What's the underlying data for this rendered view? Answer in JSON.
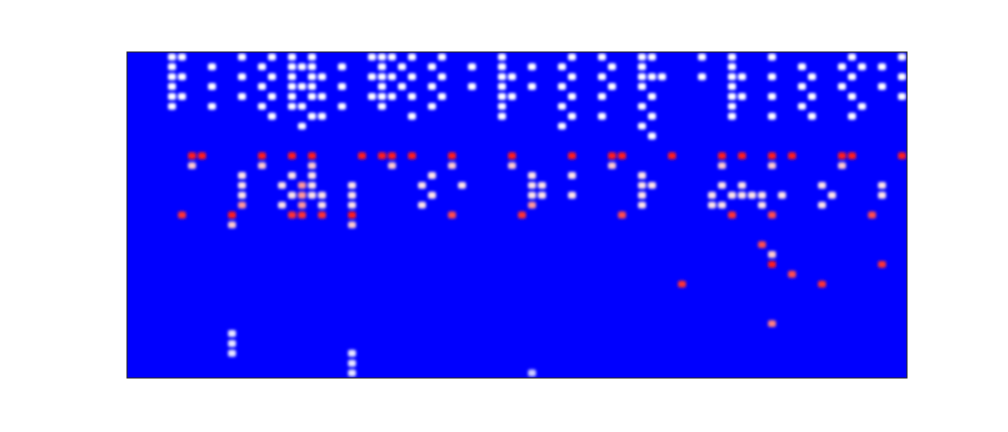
{
  "chart_data": {
    "type": "heatmap",
    "tick_labels": false,
    "grid": false,
    "xlim": [
      0,
      78
    ],
    "ylim": [
      0,
      33
    ],
    "color_range": [
      0,
      1
    ],
    "cells": [
      [
        4,
        32,
        0.5
      ],
      [
        4,
        31,
        0.5
      ],
      [
        4,
        30,
        0.5
      ],
      [
        4,
        29,
        0.5
      ],
      [
        4,
        28,
        0.5
      ],
      [
        4,
        27,
        0.5
      ],
      [
        5,
        32,
        0.5
      ],
      [
        5,
        30,
        0.5
      ],
      [
        5,
        28,
        0.5
      ],
      [
        8,
        31,
        0.5
      ],
      [
        8,
        29,
        0.5
      ],
      [
        8,
        27,
        0.5
      ],
      [
        11,
        32,
        0.5
      ],
      [
        11,
        30,
        0.5
      ],
      [
        11,
        28,
        0.5
      ],
      [
        13,
        31,
        0.5
      ],
      [
        13,
        29,
        0.5
      ],
      [
        13,
        27,
        0.5
      ],
      [
        14,
        32,
        0.5
      ],
      [
        14,
        30,
        0.5
      ],
      [
        14,
        28,
        0.5
      ],
      [
        14,
        26,
        0.5
      ],
      [
        16,
        32,
        0.5
      ],
      [
        16,
        31,
        0.5
      ],
      [
        16,
        30,
        0.5
      ],
      [
        16,
        29,
        0.5
      ],
      [
        16,
        28,
        0.5
      ],
      [
        16,
        27,
        0.5
      ],
      [
        17,
        31,
        0.5
      ],
      [
        17,
        29,
        0.5
      ],
      [
        17,
        27,
        0.5
      ],
      [
        17,
        25,
        0.5
      ],
      [
        18,
        32,
        0.5
      ],
      [
        18,
        31,
        0.5
      ],
      [
        18,
        30,
        0.5
      ],
      [
        18,
        29,
        0.5
      ],
      [
        18,
        28,
        0.5
      ],
      [
        18,
        26,
        0.5
      ],
      [
        19,
        30,
        0.5
      ],
      [
        19,
        28,
        0.5
      ],
      [
        19,
        26,
        0.5
      ],
      [
        21,
        31,
        0.5
      ],
      [
        21,
        29,
        0.5
      ],
      [
        21,
        27,
        0.5
      ],
      [
        24,
        32,
        0.5
      ],
      [
        24,
        30,
        0.5
      ],
      [
        24,
        28,
        0.5
      ],
      [
        25,
        32,
        0.5
      ],
      [
        25,
        31,
        0.5
      ],
      [
        25,
        30,
        0.5
      ],
      [
        25,
        29,
        0.5
      ],
      [
        25,
        28,
        0.5
      ],
      [
        25,
        27,
        0.5
      ],
      [
        26,
        32,
        0.5
      ],
      [
        26,
        30,
        0.5
      ],
      [
        26,
        28,
        0.5
      ],
      [
        27,
        31,
        0.5
      ],
      [
        27,
        29,
        0.5
      ],
      [
        28,
        32,
        0.5
      ],
      [
        28,
        30,
        0.5
      ],
      [
        28,
        28,
        0.5
      ],
      [
        28,
        26,
        0.5
      ],
      [
        30,
        31,
        0.5
      ],
      [
        30,
        29,
        0.5
      ],
      [
        30,
        27,
        0.5
      ],
      [
        31,
        32,
        0.5
      ],
      [
        31,
        30,
        0.5
      ],
      [
        31,
        28,
        0.5
      ],
      [
        34,
        31,
        0.5
      ],
      [
        34,
        29,
        0.5
      ],
      [
        37,
        32,
        0.5
      ],
      [
        37,
        31,
        0.5
      ],
      [
        37,
        30,
        0.5
      ],
      [
        37,
        29,
        0.5
      ],
      [
        37,
        28,
        0.5
      ],
      [
        37,
        27,
        0.5
      ],
      [
        37,
        26,
        0.5
      ],
      [
        38,
        30,
        0.5
      ],
      [
        38,
        28,
        0.5
      ],
      [
        40,
        31,
        0.5
      ],
      [
        40,
        29,
        0.5
      ],
      [
        43,
        31,
        0.5
      ],
      [
        43,
        29,
        0.5
      ],
      [
        43,
        27,
        0.5
      ],
      [
        43,
        25,
        0.5
      ],
      [
        44,
        32,
        0.5
      ],
      [
        44,
        30,
        0.5
      ],
      [
        44,
        28,
        0.5
      ],
      [
        44,
        26,
        0.5
      ],
      [
        47,
        32,
        0.5
      ],
      [
        47,
        30,
        0.5
      ],
      [
        47,
        28,
        0.5
      ],
      [
        47,
        26,
        0.5
      ],
      [
        48,
        31,
        0.5
      ],
      [
        48,
        29,
        0.5
      ],
      [
        51,
        32,
        0.5
      ],
      [
        51,
        31,
        0.5
      ],
      [
        51,
        30,
        0.5
      ],
      [
        51,
        29,
        0.5
      ],
      [
        51,
        27,
        0.5
      ],
      [
        51,
        25,
        0.5
      ],
      [
        52,
        32,
        0.5
      ],
      [
        52,
        30,
        0.5
      ],
      [
        52,
        28,
        0.5
      ],
      [
        52,
        26,
        0.5
      ],
      [
        52,
        24,
        0.5
      ],
      [
        53,
        30,
        0.5
      ],
      [
        57,
        32,
        0.5
      ],
      [
        57,
        30,
        0.5
      ],
      [
        60,
        32,
        0.5
      ],
      [
        60,
        31,
        0.5
      ],
      [
        60,
        30,
        0.5
      ],
      [
        60,
        29,
        0.5
      ],
      [
        60,
        28,
        0.5
      ],
      [
        60,
        27,
        0.5
      ],
      [
        60,
        26,
        0.5
      ],
      [
        61,
        30,
        0.5
      ],
      [
        61,
        28,
        0.5
      ],
      [
        64,
        32,
        0.5
      ],
      [
        64,
        30,
        0.5
      ],
      [
        64,
        28,
        0.5
      ],
      [
        64,
        26,
        0.5
      ],
      [
        67,
        31,
        0.5
      ],
      [
        67,
        29,
        0.5
      ],
      [
        67,
        27,
        0.5
      ],
      [
        68,
        30,
        0.5
      ],
      [
        68,
        28,
        0.5
      ],
      [
        68,
        26,
        0.5
      ],
      [
        71,
        31,
        0.5
      ],
      [
        71,
        29,
        0.5
      ],
      [
        72,
        32,
        0.5
      ],
      [
        72,
        30,
        0.5
      ],
      [
        72,
        28,
        0.5
      ],
      [
        72,
        26,
        0.5
      ],
      [
        73,
        31,
        0.5
      ],
      [
        73,
        27,
        0.5
      ],
      [
        75,
        31,
        0.5
      ],
      [
        75,
        29,
        0.5
      ],
      [
        77,
        32,
        0.5
      ],
      [
        77,
        30,
        0.5
      ],
      [
        77,
        28,
        0.5
      ],
      [
        6,
        22,
        0.95
      ],
      [
        7,
        22,
        0.95
      ],
      [
        13,
        22,
        0.95
      ],
      [
        16,
        22,
        0.95
      ],
      [
        18,
        22,
        0.95
      ],
      [
        23,
        22,
        0.95
      ],
      [
        25,
        22,
        0.95
      ],
      [
        26,
        22,
        0.95
      ],
      [
        28,
        22,
        0.95
      ],
      [
        32,
        22,
        0.95
      ],
      [
        38,
        22,
        0.95
      ],
      [
        44,
        22,
        0.95
      ],
      [
        48,
        22,
        0.95
      ],
      [
        49,
        22,
        0.95
      ],
      [
        54,
        22,
        0.95
      ],
      [
        59,
        22,
        0.95
      ],
      [
        61,
        22,
        0.95
      ],
      [
        64,
        22,
        0.95
      ],
      [
        66,
        22,
        0.95
      ],
      [
        71,
        22,
        0.95
      ],
      [
        72,
        22,
        0.95
      ],
      [
        77,
        22,
        0.95
      ],
      [
        6,
        21,
        0.6
      ],
      [
        13,
        21,
        0.6
      ],
      [
        18,
        21,
        0.6
      ],
      [
        26,
        21,
        0.6
      ],
      [
        32,
        21,
        0.6
      ],
      [
        38,
        21,
        0.6
      ],
      [
        48,
        21,
        0.6
      ],
      [
        59,
        21,
        0.6
      ],
      [
        64,
        21,
        0.6
      ],
      [
        71,
        21,
        0.6
      ],
      [
        11,
        20,
        0.55
      ],
      [
        11,
        19,
        0.55
      ],
      [
        11,
        18,
        0.55
      ],
      [
        11,
        17,
        0.7
      ],
      [
        15,
        19,
        0.55
      ],
      [
        15,
        17,
        0.55
      ],
      [
        16,
        20,
        0.55
      ],
      [
        16,
        18,
        0.55
      ],
      [
        17,
        19,
        0.7
      ],
      [
        17,
        18,
        0.7
      ],
      [
        17,
        17,
        0.7
      ],
      [
        18,
        20,
        0.55
      ],
      [
        18,
        19,
        0.55
      ],
      [
        18,
        18,
        0.55
      ],
      [
        19,
        18,
        0.55
      ],
      [
        19,
        17,
        0.55
      ],
      [
        22,
        19,
        0.55
      ],
      [
        22,
        18,
        0.55
      ],
      [
        22,
        17,
        0.55
      ],
      [
        29,
        19,
        0.55
      ],
      [
        29,
        17,
        0.55
      ],
      [
        30,
        20,
        0.55
      ],
      [
        30,
        18,
        0.55
      ],
      [
        33,
        19,
        0.55
      ],
      [
        40,
        20,
        0.55
      ],
      [
        40,
        19,
        0.55
      ],
      [
        40,
        18,
        0.55
      ],
      [
        40,
        17,
        0.7
      ],
      [
        41,
        19,
        0.55
      ],
      [
        41,
        18,
        0.55
      ],
      [
        44,
        20,
        0.55
      ],
      [
        44,
        18,
        0.55
      ],
      [
        51,
        20,
        0.55
      ],
      [
        51,
        19,
        0.55
      ],
      [
        51,
        18,
        0.55
      ],
      [
        51,
        17,
        0.55
      ],
      [
        52,
        19,
        0.55
      ],
      [
        58,
        18,
        0.55
      ],
      [
        58,
        17,
        0.55
      ],
      [
        59,
        19,
        0.55
      ],
      [
        59,
        17,
        0.55
      ],
      [
        60,
        18,
        0.55
      ],
      [
        61,
        19,
        0.55
      ],
      [
        61,
        18,
        0.55
      ],
      [
        62,
        18,
        0.55
      ],
      [
        63,
        17,
        0.55
      ],
      [
        63,
        18,
        0.55
      ],
      [
        65,
        18,
        0.55
      ],
      [
        69,
        19,
        0.55
      ],
      [
        69,
        17,
        0.55
      ],
      [
        70,
        18,
        0.55
      ],
      [
        75,
        19,
        0.55
      ],
      [
        75,
        18,
        0.55
      ],
      [
        5,
        16,
        0.9
      ],
      [
        10,
        16,
        0.95
      ],
      [
        16,
        16,
        0.9
      ],
      [
        17,
        16,
        0.9
      ],
      [
        19,
        16,
        0.9
      ],
      [
        22,
        16,
        0.95
      ],
      [
        32,
        16,
        0.85
      ],
      [
        39,
        16,
        0.9
      ],
      [
        49,
        16,
        0.85
      ],
      [
        60,
        16,
        0.9
      ],
      [
        64,
        16,
        0.85
      ],
      [
        74,
        16,
        0.85
      ],
      [
        10,
        15,
        0.6
      ],
      [
        22,
        15,
        0.6
      ],
      [
        55,
        9,
        0.9
      ],
      [
        63,
        13,
        0.85
      ],
      [
        64,
        11,
        0.95
      ],
      [
        64,
        12,
        0.6
      ],
      [
        66,
        10,
        0.85
      ],
      [
        69,
        9,
        0.9
      ],
      [
        75,
        11,
        0.9
      ],
      [
        64,
        5,
        0.75
      ],
      [
        10,
        4,
        0.45
      ],
      [
        10,
        3,
        0.45
      ],
      [
        10,
        2,
        0.45
      ],
      [
        22,
        2,
        0.45
      ],
      [
        22,
        1,
        0.45
      ],
      [
        22,
        0,
        0.45
      ],
      [
        40,
        0,
        0.4
      ]
    ]
  }
}
